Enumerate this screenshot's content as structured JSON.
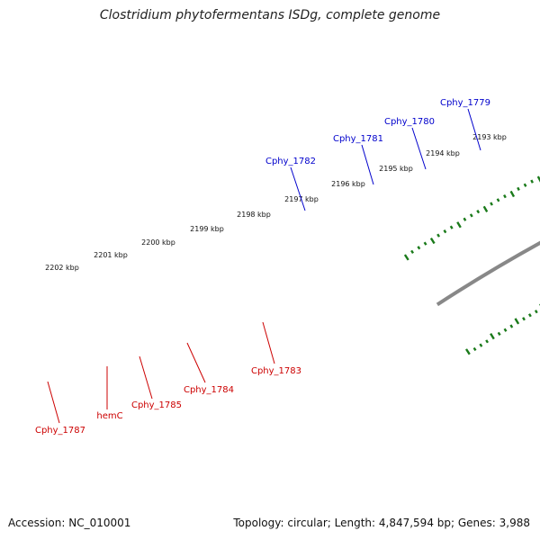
{
  "title": "Clostridium phytofermentans ISDg, complete genome",
  "footer": {
    "accession": "Accession: NC_010001",
    "stats": "Topology: circular; Length: 4,847,594 bp; Genes: 3,988"
  },
  "colors": {
    "backbone": "#888888",
    "tick_green": "#1a7a1a",
    "forward_label": "#0000cc",
    "reverse_label": "#cc0000",
    "cds_blue": "#0000dd",
    "cds_red": "#dd0000",
    "cds_cyan": "#00e0e0",
    "cds_gray": "#aaaaaa",
    "cds_darkgray": "#555555",
    "cds_magenta": "#dd0088"
  },
  "scale_labels": [
    "2202 kbp",
    "2201 kbp",
    "2200 kbp",
    "2199 kbp",
    "2198 kbp",
    "2197 kbp",
    "2196 kbp",
    "2195 kbp",
    "2194 kbp",
    "2193 kbp"
  ],
  "gene_labels": {
    "forward": [
      "Cphy_1782",
      "Cphy_1781",
      "Cphy_1780",
      "Cphy_1779"
    ],
    "reverse": [
      "Cphy_1787",
      "hemC",
      "Cphy_1785",
      "Cphy_1784",
      "Cphy_1783"
    ]
  }
}
